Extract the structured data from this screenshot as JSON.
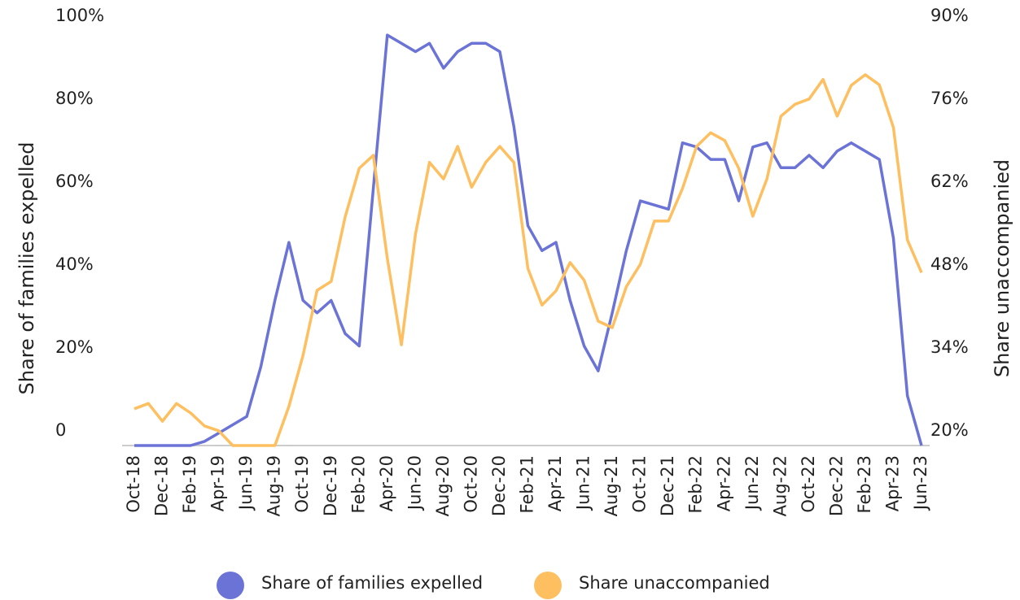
{
  "chart_data": {
    "type": "line",
    "categories": [
      "Oct-18",
      null,
      "Dec-18",
      null,
      "Feb-19",
      null,
      "Apr-19",
      null,
      "Jun-19",
      null,
      "Aug-19",
      null,
      "Oct-19",
      null,
      "Dec-19",
      null,
      "Feb-20",
      null,
      "Apr-20",
      null,
      "Jun-20",
      null,
      "Aug-20",
      null,
      "Oct-20",
      null,
      "Dec-20",
      null,
      "Feb-21",
      null,
      "Apr-21",
      null,
      "Jun-21",
      null,
      "Aug-21",
      null,
      "Oct-21",
      null,
      "Dec-21",
      null,
      "Feb-22",
      null,
      "Apr-22",
      null,
      "Jun-22",
      null,
      "Aug-22",
      null,
      "Oct-22",
      null,
      "Dec-22",
      null,
      "Feb-23",
      null,
      "Apr-23",
      null,
      "Jun-23"
    ],
    "ylabel": "Share of families expelled",
    "y2label": "Share unaccompanied",
    "ylim": [
      0,
      100
    ],
    "yticks": [
      0,
      {
        "value": 20,
        "label": "20%"
      },
      {
        "value": 40,
        "label": "40%"
      },
      {
        "value": 60,
        "label": "60%"
      },
      {
        "value": 80,
        "label": "80%"
      },
      {
        "value": 100,
        "label": "100%"
      }
    ],
    "y2lim": [
      20,
      90
    ],
    "y2ticks": [
      {
        "value": 20,
        "label": "20%"
      },
      {
        "value": 34,
        "label": "34%"
      },
      {
        "value": 48,
        "label": "48%"
      },
      {
        "value": 62,
        "label": "62%"
      },
      {
        "value": 76,
        "label": "76%"
      },
      {
        "value": 90,
        "label": "90%"
      }
    ],
    "grid": false,
    "legend": "bottom",
    "series": [
      {
        "name": "Share of families expelled",
        "color": "#6b74d6",
        "axis": "y",
        "values": [
          0,
          0,
          0,
          0,
          0,
          1,
          3,
          5,
          7,
          19,
          35,
          49,
          35,
          32,
          35,
          27,
          24,
          62,
          99,
          97,
          95,
          97,
          91,
          95,
          97,
          97,
          95,
          77,
          53,
          47,
          49,
          35,
          24,
          18,
          32,
          47,
          59,
          58,
          57,
          73,
          72,
          69,
          69,
          59,
          72,
          73,
          67,
          67,
          70,
          67,
          71,
          73,
          71,
          69,
          50,
          12,
          0
        ]
      },
      {
        "name": "Share unaccompanied",
        "color": "#fdbf5f",
        "axis": "y2",
        "values": [
          26.2,
          27.1,
          24.1,
          27.1,
          25.5,
          23.3,
          22.5,
          20,
          20,
          20,
          20,
          26.6,
          35.2,
          46.2,
          47.7,
          58.6,
          66.8,
          69,
          51.6,
          37,
          55.7,
          67.8,
          65,
          70.5,
          63.6,
          67.8,
          70.5,
          67.8,
          49.9,
          43.7,
          46.1,
          50.9,
          47.9,
          41,
          39.9,
          46.8,
          50.6,
          57.9,
          57.9,
          63.4,
          70.5,
          72.8,
          71.5,
          66.8,
          58.7,
          65,
          75.6,
          77.6,
          78.5,
          81.8,
          75.6,
          80.8,
          82.6,
          80.9,
          73.7,
          54.7,
          49.2
        ]
      }
    ]
  }
}
